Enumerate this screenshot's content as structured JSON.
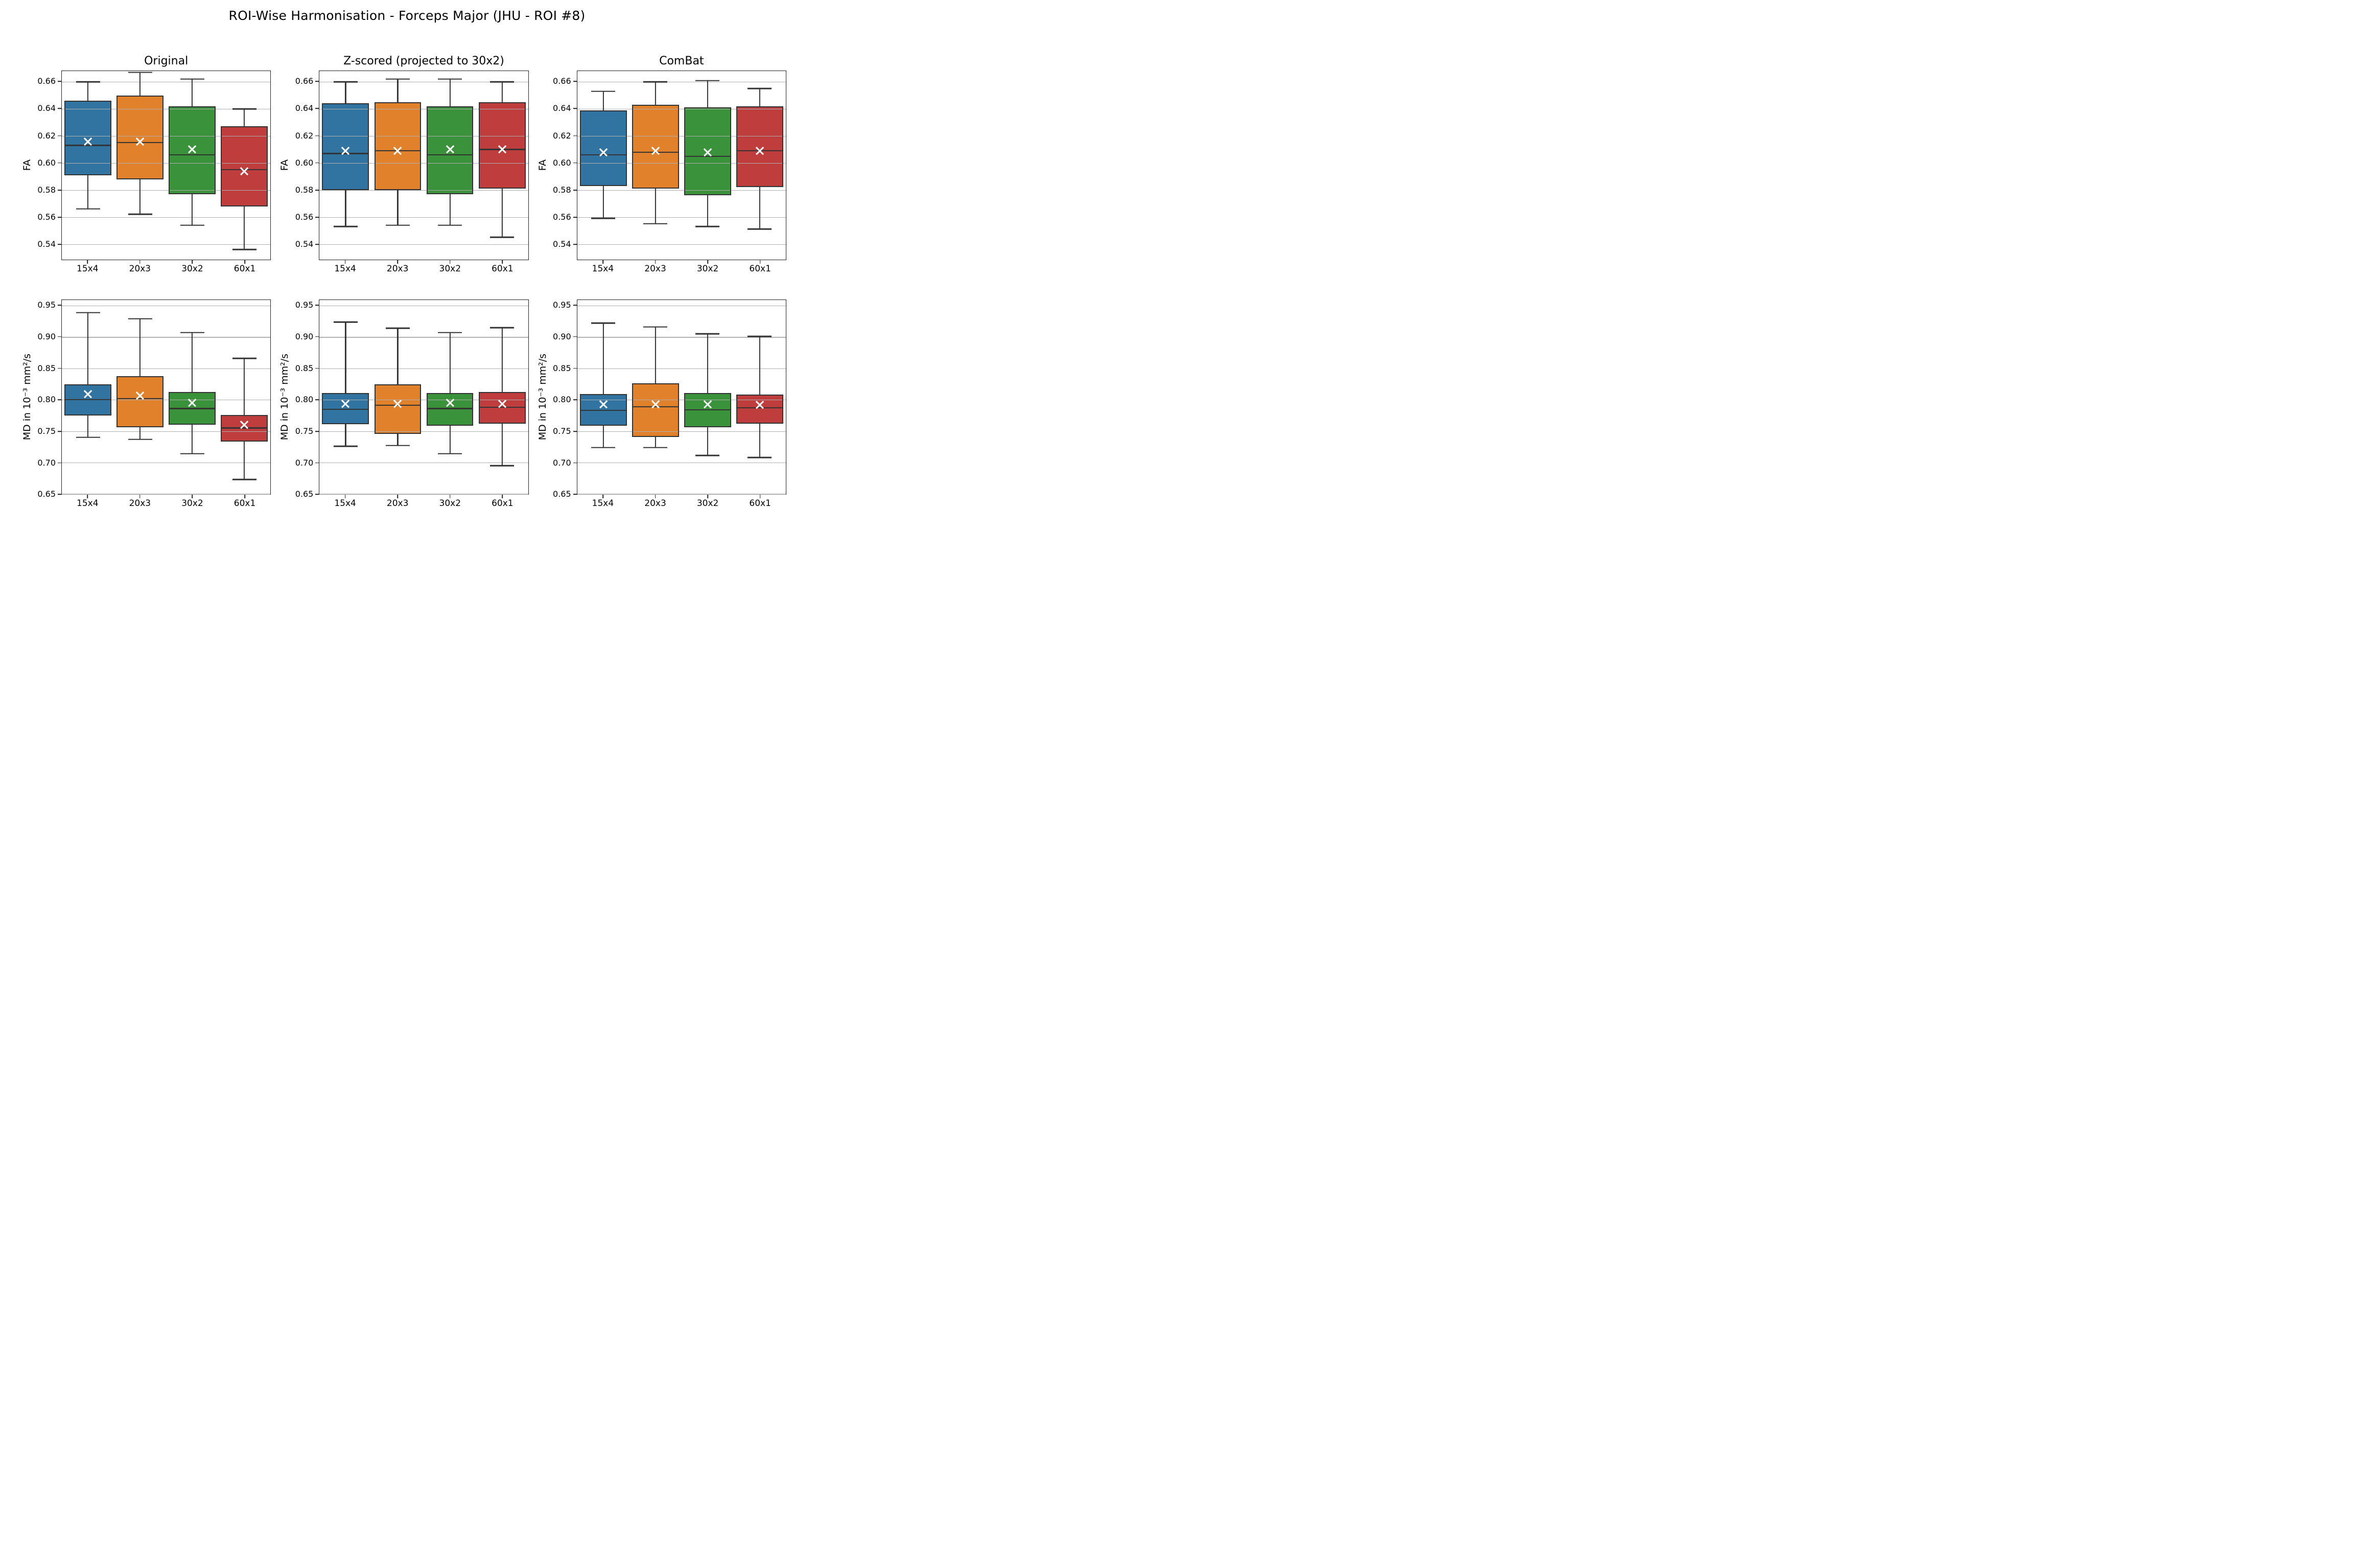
{
  "figure": {
    "title": "ROI-Wise Harmonisation - Forceps Major (JHU - ROI #8)"
  },
  "colors": {
    "blue": "#3274a1",
    "orange": "#e1812c",
    "green": "#3a923a",
    "red": "#c03d3e",
    "box_edge": "#333333",
    "grid": "#b0b0b0",
    "spine": "#222222",
    "mean_marker": "#ffffff"
  },
  "chart_data": [
    {
      "type": "boxplot",
      "title": "Original",
      "ylabel": "FA",
      "ylim": [
        0.5285,
        0.668
      ],
      "ytick_labels": [
        "0.66",
        "0.64",
        "0.62",
        "0.60",
        "0.58",
        "0.56",
        "0.54"
      ],
      "categories": [
        "15x4",
        "20x3",
        "30x2",
        "60x1"
      ],
      "grid": true,
      "boxes": [
        {
          "label": "15x4",
          "color": "#3274a1",
          "whislo": 0.566,
          "q1": 0.591,
          "med": 0.613,
          "mean": 0.616,
          "q3": 0.646,
          "whishi": 0.66
        },
        {
          "label": "20x3",
          "color": "#e1812c",
          "whislo": 0.562,
          "q1": 0.588,
          "med": 0.615,
          "mean": 0.616,
          "q3": 0.65,
          "whishi": 0.667
        },
        {
          "label": "30x2",
          "color": "#3a923a",
          "whislo": 0.554,
          "q1": 0.577,
          "med": 0.606,
          "mean": 0.61,
          "q3": 0.642,
          "whishi": 0.662
        },
        {
          "label": "60x1",
          "color": "#c03d3e",
          "whislo": 0.536,
          "q1": 0.568,
          "med": 0.595,
          "mean": 0.594,
          "q3": 0.627,
          "whishi": 0.64
        }
      ]
    },
    {
      "type": "boxplot",
      "title": "Z-scored (projected to 30x2)",
      "ylabel": "FA",
      "ylim": [
        0.5285,
        0.668
      ],
      "ytick_labels": [
        "0.66",
        "0.64",
        "0.62",
        "0.60",
        "0.58",
        "0.56",
        "0.54"
      ],
      "categories": [
        "15x4",
        "20x3",
        "30x2",
        "60x1"
      ],
      "grid": true,
      "boxes": [
        {
          "label": "15x4",
          "color": "#3274a1",
          "whislo": 0.553,
          "q1": 0.58,
          "med": 0.607,
          "mean": 0.609,
          "q3": 0.644,
          "whishi": 0.66
        },
        {
          "label": "20x3",
          "color": "#e1812c",
          "whislo": 0.554,
          "q1": 0.58,
          "med": 0.609,
          "mean": 0.609,
          "q3": 0.645,
          "whishi": 0.662
        },
        {
          "label": "30x2",
          "color": "#3a923a",
          "whislo": 0.554,
          "q1": 0.577,
          "med": 0.606,
          "mean": 0.61,
          "q3": 0.642,
          "whishi": 0.662
        },
        {
          "label": "60x1",
          "color": "#c03d3e",
          "whislo": 0.545,
          "q1": 0.581,
          "med": 0.61,
          "mean": 0.61,
          "q3": 0.645,
          "whishi": 0.66
        }
      ]
    },
    {
      "type": "boxplot",
      "title": "ComBat",
      "ylabel": "FA",
      "ylim": [
        0.5285,
        0.668
      ],
      "ytick_labels": [
        "0.66",
        "0.64",
        "0.62",
        "0.60",
        "0.58",
        "0.56",
        "0.54"
      ],
      "categories": [
        "15x4",
        "20x3",
        "30x2",
        "60x1"
      ],
      "grid": true,
      "boxes": [
        {
          "label": "15x4",
          "color": "#3274a1",
          "whislo": 0.559,
          "q1": 0.583,
          "med": 0.606,
          "mean": 0.608,
          "q3": 0.639,
          "whishi": 0.653
        },
        {
          "label": "20x3",
          "color": "#e1812c",
          "whislo": 0.555,
          "q1": 0.581,
          "med": 0.608,
          "mean": 0.609,
          "q3": 0.643,
          "whishi": 0.66
        },
        {
          "label": "30x2",
          "color": "#3a923a",
          "whislo": 0.553,
          "q1": 0.576,
          "med": 0.605,
          "mean": 0.608,
          "q3": 0.641,
          "whishi": 0.661
        },
        {
          "label": "60x1",
          "color": "#c03d3e",
          "whislo": 0.551,
          "q1": 0.582,
          "med": 0.609,
          "mean": 0.609,
          "q3": 0.642,
          "whishi": 0.655
        }
      ]
    },
    {
      "type": "boxplot",
      "title": "",
      "ylabel": "MD in 10⁻³ mm²/s",
      "ylim": [
        0.6495,
        0.959
      ],
      "ytick_labels": [
        "0.95",
        "0.90",
        "0.85",
        "0.80",
        "0.75",
        "0.70",
        "0.65"
      ],
      "categories": [
        "15x4",
        "20x3",
        "30x2",
        "60x1"
      ],
      "grid": true,
      "boxes": [
        {
          "label": "15x4",
          "color": "#3274a1",
          "whislo": 0.74,
          "q1": 0.775,
          "med": 0.8,
          "mean": 0.809,
          "q3": 0.825,
          "whishi": 0.939
        },
        {
          "label": "20x3",
          "color": "#e1812c",
          "whislo": 0.737,
          "q1": 0.756,
          "med": 0.802,
          "mean": 0.807,
          "q3": 0.838,
          "whishi": 0.929
        },
        {
          "label": "30x2",
          "color": "#3a923a",
          "whislo": 0.714,
          "q1": 0.76,
          "med": 0.786,
          "mean": 0.795,
          "q3": 0.812,
          "whishi": 0.907
        },
        {
          "label": "60x1",
          "color": "#c03d3e",
          "whislo": 0.673,
          "q1": 0.733,
          "med": 0.755,
          "mean": 0.76,
          "q3": 0.776,
          "whishi": 0.866
        }
      ]
    },
    {
      "type": "boxplot",
      "title": "",
      "ylabel": "MD in 10⁻³ mm²/s",
      "ylim": [
        0.6495,
        0.959
      ],
      "ytick_labels": [
        "0.95",
        "0.90",
        "0.85",
        "0.80",
        "0.75",
        "0.70",
        "0.65"
      ],
      "categories": [
        "15x4",
        "20x3",
        "30x2",
        "60x1"
      ],
      "grid": true,
      "boxes": [
        {
          "label": "15x4",
          "color": "#3274a1",
          "whislo": 0.726,
          "q1": 0.761,
          "med": 0.785,
          "mean": 0.794,
          "q3": 0.811,
          "whishi": 0.924
        },
        {
          "label": "20x3",
          "color": "#e1812c",
          "whislo": 0.727,
          "q1": 0.746,
          "med": 0.791,
          "mean": 0.794,
          "q3": 0.825,
          "whishi": 0.914
        },
        {
          "label": "30x2",
          "color": "#3a923a",
          "whislo": 0.714,
          "q1": 0.759,
          "med": 0.786,
          "mean": 0.795,
          "q3": 0.811,
          "whishi": 0.907
        },
        {
          "label": "60x1",
          "color": "#c03d3e",
          "whislo": 0.695,
          "q1": 0.762,
          "med": 0.788,
          "mean": 0.794,
          "q3": 0.812,
          "whishi": 0.915
        }
      ]
    },
    {
      "type": "boxplot",
      "title": "",
      "ylabel": "MD in 10⁻³ mm²/s",
      "ylim": [
        0.6495,
        0.959
      ],
      "ytick_labels": [
        "0.95",
        "0.90",
        "0.85",
        "0.80",
        "0.75",
        "0.70",
        "0.65"
      ],
      "categories": [
        "15x4",
        "20x3",
        "30x2",
        "60x1"
      ],
      "grid": true,
      "boxes": [
        {
          "label": "15x4",
          "color": "#3274a1",
          "whislo": 0.724,
          "q1": 0.759,
          "med": 0.783,
          "mean": 0.793,
          "q3": 0.809,
          "whishi": 0.922
        },
        {
          "label": "20x3",
          "color": "#e1812c",
          "whislo": 0.724,
          "q1": 0.741,
          "med": 0.789,
          "mean": 0.793,
          "q3": 0.826,
          "whishi": 0.916
        },
        {
          "label": "30x2",
          "color": "#3a923a",
          "whislo": 0.711,
          "q1": 0.756,
          "med": 0.784,
          "mean": 0.793,
          "q3": 0.811,
          "whishi": 0.905
        },
        {
          "label": "60x1",
          "color": "#c03d3e",
          "whislo": 0.708,
          "q1": 0.762,
          "med": 0.787,
          "mean": 0.792,
          "q3": 0.808,
          "whishi": 0.901
        }
      ]
    }
  ]
}
